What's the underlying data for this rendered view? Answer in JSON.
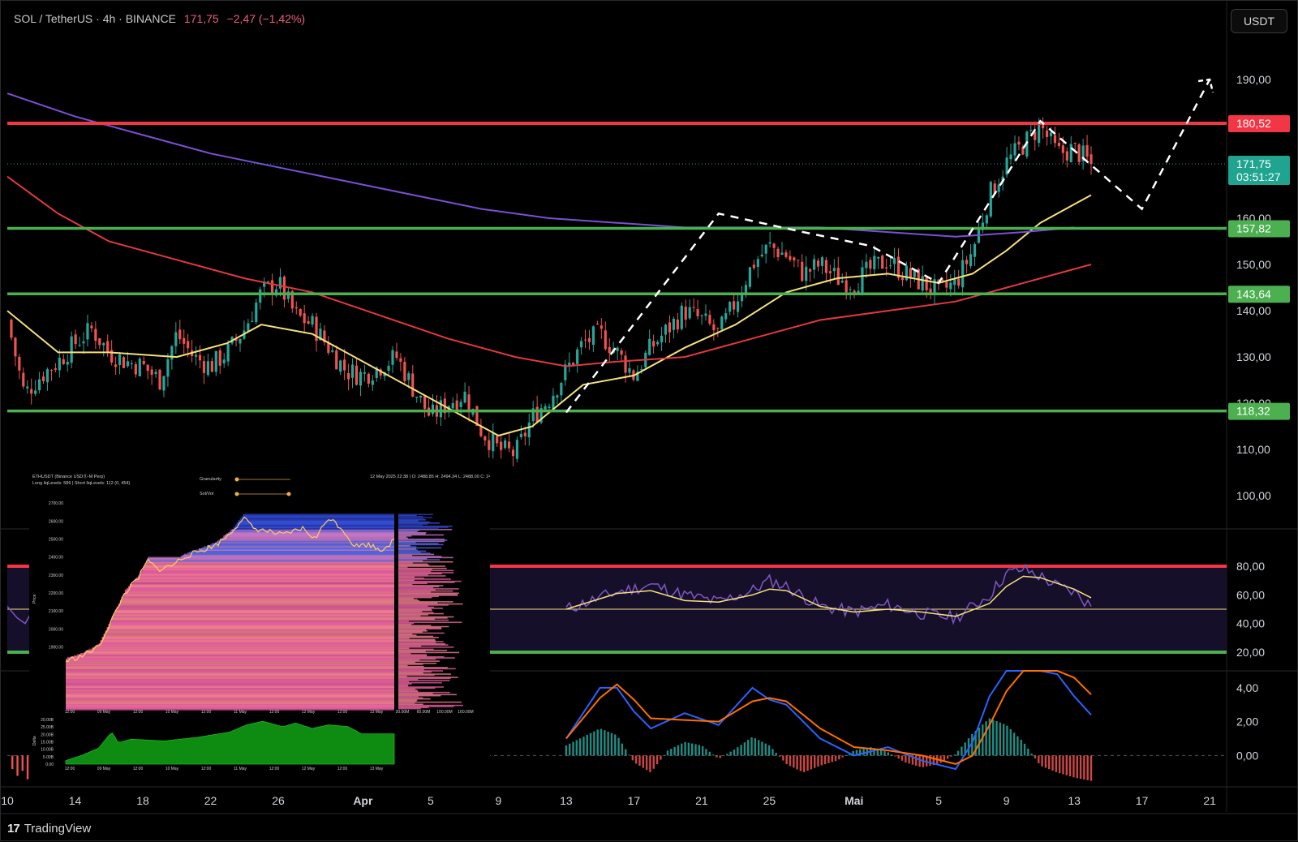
{
  "header": {
    "symbol": "SOL / TetherUS · 4h · BINANCE",
    "price": "171,75",
    "change": "−2,47 (−1,42%)"
  },
  "currency_button": "USDT",
  "footer": {
    "brand": "TradingView",
    "logo_text": "17"
  },
  "colors": {
    "background": "#000000",
    "resistance": "#f23645",
    "support": "#4caf50",
    "ema_short": "#f5e07a",
    "ema_mid": "#e0393e",
    "ema_long": "#7b4fd6",
    "rsi": "#7e57c2",
    "candle_up": "#26a69a",
    "candle_down": "#ef5350",
    "projection": "#ffffff"
  },
  "chart_data": [
    {
      "type": "candlestick",
      "symbol": "SOL / TetherUS",
      "timeframe": "4h",
      "exchange": "BINANCE",
      "y_range": [
        93,
        200
      ],
      "y_ticks": [
        "100,00",
        "110,00",
        "120,00",
        "130,00",
        "140,00",
        "150,00",
        "160,00",
        "190,00"
      ],
      "x_ticks": [
        "10",
        "14",
        "18",
        "22",
        "26",
        "Apr",
        "5",
        "9",
        "13",
        "17",
        "21",
        "25",
        "Mai",
        "5",
        "9",
        "13",
        "17",
        "21",
        "25"
      ],
      "price_path": [
        [
          10,
          138
        ],
        [
          11,
          122
        ],
        [
          12,
          126
        ],
        [
          13,
          129
        ],
        [
          14,
          133
        ],
        [
          15,
          136
        ],
        [
          16,
          131
        ],
        [
          17,
          129
        ],
        [
          18,
          128
        ],
        [
          19,
          125
        ],
        [
          20,
          135
        ],
        [
          21,
          130
        ],
        [
          22,
          128
        ],
        [
          23,
          131
        ],
        [
          24,
          136
        ],
        [
          25,
          144
        ],
        [
          26,
          146
        ],
        [
          27,
          139
        ],
        [
          28,
          137
        ],
        [
          29,
          132
        ],
        [
          30,
          127
        ],
        [
          31,
          126
        ],
        [
          32,
          128
        ],
        [
          33,
          130
        ],
        [
          34,
          123
        ],
        [
          35,
          117
        ],
        [
          36,
          120
        ],
        [
          37,
          122
        ],
        [
          38,
          114
        ],
        [
          39,
          110
        ],
        [
          40,
          109
        ],
        [
          41,
          117
        ],
        [
          42,
          121
        ],
        [
          43,
          127
        ],
        [
          44,
          133
        ],
        [
          45,
          135
        ],
        [
          46,
          131
        ],
        [
          47,
          126
        ],
        [
          48,
          132
        ],
        [
          49,
          136
        ],
        [
          50,
          140
        ],
        [
          51,
          138
        ],
        [
          52,
          135
        ],
        [
          53,
          142
        ],
        [
          54,
          150
        ],
        [
          55,
          154
        ],
        [
          56,
          152
        ],
        [
          57,
          148
        ],
        [
          58,
          150
        ],
        [
          59,
          147
        ],
        [
          60,
          146
        ],
        [
          61,
          149
        ],
        [
          62,
          151
        ],
        [
          63,
          148
        ],
        [
          64,
          146
        ],
        [
          65,
          144
        ],
        [
          66,
          146
        ],
        [
          67,
          153
        ],
        [
          68,
          165
        ],
        [
          69,
          172
        ],
        [
          70,
          176
        ],
        [
          71,
          180
        ],
        [
          72,
          174
        ],
        [
          73,
          175
        ],
        [
          74,
          171.75
        ]
      ],
      "moving_averages": [
        {
          "name": "EMA short",
          "color": "#f5e07a",
          "points": [
            [
              10,
              140
            ],
            [
              13,
              131
            ],
            [
              16,
              131
            ],
            [
              20,
              130
            ],
            [
              23,
              133
            ],
            [
              25,
              137
            ],
            [
              28,
              135
            ],
            [
              31,
              129
            ],
            [
              34,
              123
            ],
            [
              37,
              117
            ],
            [
              39,
              113
            ],
            [
              41,
              115
            ],
            [
              44,
              124
            ],
            [
              47,
              126
            ],
            [
              50,
              132
            ],
            [
              53,
              137
            ],
            [
              56,
              144
            ],
            [
              59,
              147
            ],
            [
              62,
              148
            ],
            [
              65,
              146
            ],
            [
              67,
              148
            ],
            [
              69,
              153
            ],
            [
              71,
              159
            ],
            [
              73,
              163
            ],
            [
              74,
              165
            ]
          ]
        },
        {
          "name": "EMA mid",
          "color": "#e0393e",
          "points": [
            [
              10,
              169
            ],
            [
              13,
              161
            ],
            [
              16,
              155
            ],
            [
              20,
              151
            ],
            [
              24,
              147
            ],
            [
              28,
              144
            ],
            [
              32,
              139
            ],
            [
              36,
              134
            ],
            [
              40,
              130
            ],
            [
              43,
              128
            ],
            [
              46,
              129
            ],
            [
              50,
              130
            ],
            [
              54,
              134
            ],
            [
              58,
              138
            ],
            [
              62,
              140
            ],
            [
              66,
              142
            ],
            [
              69,
              145
            ],
            [
              72,
              148
            ],
            [
              74,
              150
            ]
          ]
        },
        {
          "name": "EMA long",
          "color": "#7b4fd6",
          "points": [
            [
              10,
              187
            ],
            [
              14,
              182
            ],
            [
              18,
              178
            ],
            [
              22,
              174
            ],
            [
              26,
              171
            ],
            [
              30,
              168
            ],
            [
              34,
              165
            ],
            [
              38,
              162
            ],
            [
              42,
              160
            ],
            [
              46,
              159
            ],
            [
              50,
              158
            ],
            [
              54,
              158
            ],
            [
              58,
              158
            ],
            [
              62,
              157
            ],
            [
              66,
              156
            ],
            [
              70,
              157
            ],
            [
              73,
              158
            ]
          ]
        }
      ],
      "horizontal_levels": [
        {
          "value": 180.52,
          "label": "180,52",
          "color": "#f23645",
          "kind": "resistance"
        },
        {
          "value": 157.82,
          "label": "157,82",
          "color": "#4caf50",
          "kind": "support"
        },
        {
          "value": 143.64,
          "label": "143,64",
          "color": "#4caf50",
          "kind": "support"
        },
        {
          "value": 118.32,
          "label": "118,32",
          "color": "#4caf50",
          "kind": "support"
        }
      ],
      "current_price": {
        "value": 171.75,
        "label": "171,75",
        "countdown": "03:51:27"
      },
      "projection_path": [
        [
          43,
          118
        ],
        [
          52,
          161
        ],
        [
          57,
          157
        ],
        [
          61,
          154
        ],
        [
          65,
          146
        ],
        [
          71,
          181
        ],
        [
          77,
          162
        ],
        [
          81,
          190
        ]
      ]
    },
    {
      "type": "line",
      "name": "RSI",
      "y_range": [
        16,
        84
      ],
      "y_ticks": [
        "80,00",
        "60,00",
        "40,00",
        "20,00"
      ],
      "bands": [
        {
          "value": 80,
          "color": "#f23645"
        },
        {
          "value": 50,
          "color": "#f5e07a"
        },
        {
          "value": 20,
          "color": "#4caf50"
        }
      ],
      "rsi": [
        [
          43,
          50
        ],
        [
          46,
          62
        ],
        [
          48,
          67
        ],
        [
          50,
          60
        ],
        [
          52,
          55
        ],
        [
          54,
          63
        ],
        [
          55,
          70
        ],
        [
          56,
          66
        ],
        [
          58,
          52
        ],
        [
          60,
          48
        ],
        [
          62,
          53
        ],
        [
          64,
          47
        ],
        [
          66,
          44
        ],
        [
          68,
          60
        ],
        [
          69,
          75
        ],
        [
          70,
          78
        ],
        [
          71,
          73
        ],
        [
          72,
          66
        ],
        [
          73,
          62
        ],
        [
          74,
          52
        ]
      ],
      "rsi_ma": [
        [
          43,
          50
        ],
        [
          46,
          61
        ],
        [
          48,
          63
        ],
        [
          50,
          56
        ],
        [
          52,
          55
        ],
        [
          54,
          60
        ],
        [
          55,
          64
        ],
        [
          56,
          63
        ],
        [
          58,
          52
        ],
        [
          60,
          48
        ],
        [
          62,
          50
        ],
        [
          64,
          48
        ],
        [
          66,
          45
        ],
        [
          68,
          54
        ],
        [
          69,
          66
        ],
        [
          70,
          73
        ],
        [
          71,
          72
        ],
        [
          72,
          68
        ],
        [
          73,
          64
        ],
        [
          74,
          58
        ]
      ]
    },
    {
      "type": "bar",
      "name": "MACD",
      "y_range": [
        -1.8,
        5
      ],
      "y_ticks": [
        "4,00",
        "2,00",
        "0,00"
      ],
      "histogram": [
        [
          43,
          0.6
        ],
        [
          44,
          1.1
        ],
        [
          45,
          1.6
        ],
        [
          46,
          1.2
        ],
        [
          47,
          -0.4
        ],
        [
          48,
          -1.0
        ],
        [
          49,
          0.3
        ],
        [
          50,
          0.8
        ],
        [
          51,
          0.6
        ],
        [
          52,
          -0.2
        ],
        [
          53,
          0.4
        ],
        [
          54,
          1.1
        ],
        [
          55,
          0.6
        ],
        [
          56,
          -0.5
        ],
        [
          57,
          -1.0
        ],
        [
          58,
          -0.6
        ],
        [
          59,
          -0.3
        ],
        [
          60,
          0.3
        ],
        [
          61,
          0.5
        ],
        [
          62,
          0.2
        ],
        [
          63,
          -0.4
        ],
        [
          64,
          -0.7
        ],
        [
          65,
          -0.5
        ],
        [
          66,
          0.1
        ],
        [
          67,
          1.3
        ],
        [
          68,
          2.2
        ],
        [
          69,
          1.8
        ],
        [
          70,
          0.8
        ],
        [
          71,
          -0.6
        ],
        [
          72,
          -1.0
        ],
        [
          73,
          -1.3
        ],
        [
          74,
          -1.5
        ]
      ],
      "macd": [
        [
          43,
          1.0
        ],
        [
          45,
          4.0
        ],
        [
          46,
          4.0
        ],
        [
          47,
          2.6
        ],
        [
          48,
          1.6
        ],
        [
          50,
          2.5
        ],
        [
          52,
          1.8
        ],
        [
          54,
          4.0
        ],
        [
          55,
          3.3
        ],
        [
          56,
          3.0
        ],
        [
          58,
          1.0
        ],
        [
          60,
          0.0
        ],
        [
          62,
          0.5
        ],
        [
          64,
          -0.3
        ],
        [
          66,
          -0.8
        ],
        [
          67,
          0.8
        ],
        [
          68,
          3.5
        ],
        [
          69,
          5.0
        ],
        [
          70,
          5.0
        ],
        [
          71,
          5.0
        ],
        [
          72,
          4.8
        ],
        [
          73,
          3.5
        ],
        [
          74,
          2.4
        ]
      ],
      "signal": [
        [
          43,
          1.0
        ],
        [
          45,
          3.4
        ],
        [
          46,
          4.2
        ],
        [
          47,
          3.3
        ],
        [
          48,
          2.2
        ],
        [
          50,
          2.1
        ],
        [
          52,
          2.0
        ],
        [
          54,
          3.2
        ],
        [
          55,
          3.4
        ],
        [
          56,
          3.2
        ],
        [
          58,
          1.6
        ],
        [
          60,
          0.5
        ],
        [
          62,
          0.3
        ],
        [
          64,
          0.0
        ],
        [
          66,
          -0.5
        ],
        [
          67,
          0.0
        ],
        [
          68,
          1.8
        ],
        [
          69,
          3.8
        ],
        [
          70,
          5.0
        ],
        [
          71,
          5.0
        ],
        [
          72,
          5.0
        ],
        [
          73,
          4.6
        ],
        [
          74,
          3.6
        ]
      ]
    },
    {
      "type": "heatmap",
      "name": "ETHUSDT liquidation levels",
      "title": "ETHUSDT (Binance USDⓈ-M Perp)",
      "subtitle": "Long liqLevels: 586 | Short liqLevels: 112 (0, 454)",
      "timestamp": "12 May 2025 22:38 | O: 2488.85 H: 2494.34 L: 2488.00 C: 2493.32",
      "controls": [
        "Granularity",
        "Sol/Vol"
      ],
      "ylabel": "Price",
      "y_range": [
        1550,
        2750
      ],
      "y_ticks": [
        "2700.00",
        "2600.00",
        "2500.00",
        "2400.00",
        "2300.00",
        "2200.00",
        "2100.00",
        "2000.00",
        "1900.00"
      ],
      "x_ticks": [
        "12:00",
        "09 May",
        "12:00",
        "10 May",
        "12:00",
        "11 May",
        "12:00",
        "12 May",
        "12:00",
        "13 May"
      ],
      "side_ticks": [
        "20.00M",
        "60.00M",
        "100.00M",
        "160.00M"
      ],
      "area_ylabel": "Delta",
      "area_ticks": [
        "20.00B",
        "25.00B",
        "20.00B",
        "15.00B",
        "10.00B",
        "5.00B",
        "0.00"
      ],
      "area_x_ticks": [
        "12:00",
        "09 May",
        "12:00",
        "10 May",
        "12:00",
        "11 May",
        "12:00",
        "12 May",
        "12:00",
        "13 May"
      ],
      "price_series": [
        [
          0,
          1820
        ],
        [
          0.05,
          1850
        ],
        [
          0.1,
          1900
        ],
        [
          0.14,
          2050
        ],
        [
          0.18,
          2200
        ],
        [
          0.22,
          2280
        ],
        [
          0.25,
          2380
        ],
        [
          0.28,
          2330
        ],
        [
          0.32,
          2350
        ],
        [
          0.36,
          2400
        ],
        [
          0.42,
          2440
        ],
        [
          0.46,
          2470
        ],
        [
          0.5,
          2530
        ],
        [
          0.54,
          2620
        ],
        [
          0.57,
          2560
        ],
        [
          0.62,
          2540
        ],
        [
          0.66,
          2520
        ],
        [
          0.72,
          2560
        ],
        [
          0.76,
          2500
        ],
        [
          0.8,
          2620
        ],
        [
          0.84,
          2560
        ],
        [
          0.88,
          2460
        ],
        [
          0.92,
          2470
        ],
        [
          0.96,
          2440
        ],
        [
          1,
          2490
        ]
      ],
      "delta_series": [
        [
          0,
          2
        ],
        [
          0.05,
          5
        ],
        [
          0.1,
          9
        ],
        [
          0.14,
          18
        ],
        [
          0.16,
          12
        ],
        [
          0.2,
          14
        ],
        [
          0.3,
          13
        ],
        [
          0.4,
          15
        ],
        [
          0.5,
          18
        ],
        [
          0.55,
          22
        ],
        [
          0.6,
          24
        ],
        [
          0.66,
          21
        ],
        [
          0.7,
          23
        ],
        [
          0.75,
          20
        ],
        [
          0.8,
          22
        ],
        [
          0.86,
          21
        ],
        [
          0.9,
          17
        ],
        [
          0.95,
          17
        ],
        [
          1,
          17
        ]
      ]
    }
  ]
}
